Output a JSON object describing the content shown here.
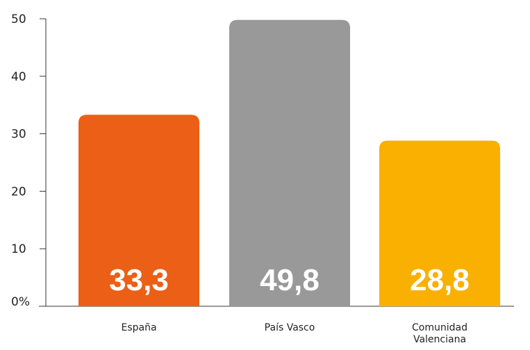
{
  "chart_data": {
    "type": "bar",
    "title": "",
    "xlabel": "",
    "ylabel": "",
    "ylim": [
      0,
      50
    ],
    "ticks": [
      "0%",
      "10",
      "20",
      "30",
      "40",
      "50"
    ],
    "tick_values": [
      0,
      10,
      20,
      30,
      40,
      50
    ],
    "grid": false,
    "categories": [
      {
        "lines": [
          "España"
        ]
      },
      {
        "lines": [
          "País Vasco"
        ]
      },
      {
        "lines": [
          "Comunidad",
          "Valenciana"
        ]
      }
    ],
    "values": [
      33.3,
      49.8,
      28.8
    ],
    "value_labels": [
      "33,3",
      "49,8",
      "28,8"
    ],
    "colors": [
      "#eb5f16",
      "#999999",
      "#f9b000"
    ],
    "axis_color": "#333333"
  }
}
